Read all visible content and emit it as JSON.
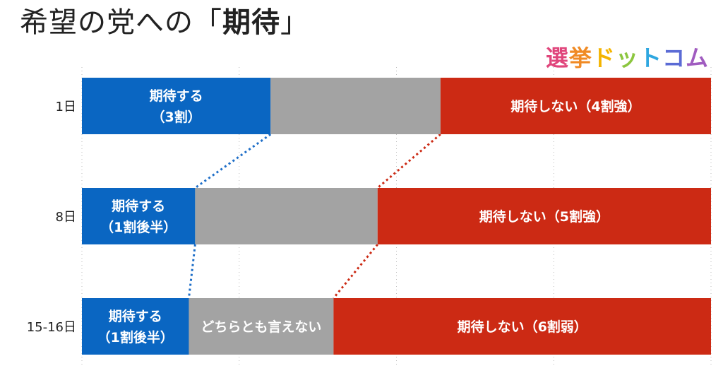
{
  "title": {
    "main": "希望の党への",
    "open_quote": "「",
    "emphasis": "期待",
    "close_quote": "」"
  },
  "logo": {
    "text": "選挙ドットコム",
    "colors": [
      "#e0457b",
      "#f08a24",
      "#f4b400",
      "#8cc63f",
      "#2fa7e0",
      "#5b6bd5",
      "#a05cc0"
    ]
  },
  "chart_data": {
    "type": "bar",
    "stacked": true,
    "orientation": "horizontal",
    "grid": true,
    "categories": [
      "1日",
      "8日",
      "15-16日"
    ],
    "series": [
      {
        "key": "expect",
        "color": "#0a66c2",
        "values": [
          0.3,
          0.18,
          0.17
        ],
        "labels": [
          [
            "期待する",
            "（3割）"
          ],
          [
            "期待する",
            "（1割後半）"
          ],
          [
            "期待する",
            "（1割後半）"
          ]
        ]
      },
      {
        "key": "neutral",
        "color": "#a3a3a3",
        "values": [
          0.27,
          0.29,
          0.23
        ],
        "labels": [
          [],
          [],
          [
            "どちらとも言えない"
          ]
        ]
      },
      {
        "key": "not_expect",
        "color": "#cc2a14",
        "values": [
          0.43,
          0.53,
          0.6
        ],
        "labels": [
          [
            "期待しない（4割強）"
          ],
          [
            "期待しない（5割強）"
          ],
          [
            "期待しない（6割弱）"
          ]
        ]
      }
    ],
    "connector_colors": [
      "#1f6fc8",
      "#cc2a14"
    ]
  }
}
